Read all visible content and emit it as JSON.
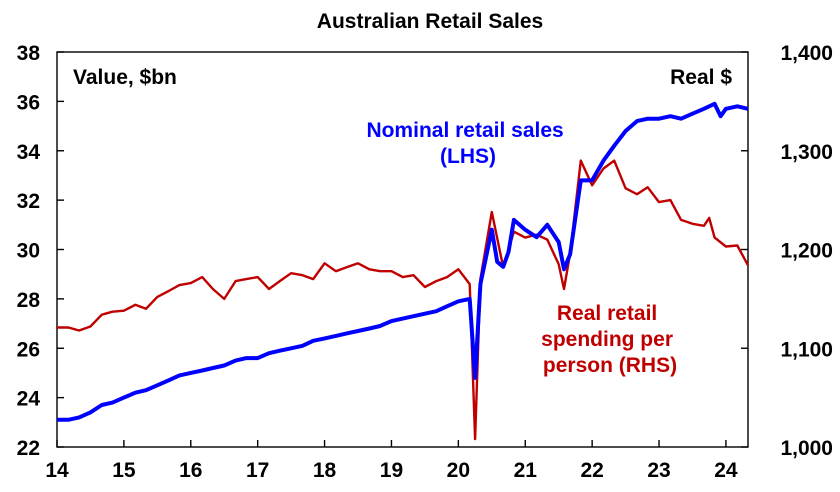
{
  "chart_data": {
    "type": "line",
    "title": "Australian Retail Sales",
    "left_axis_unit": "Value, $bn",
    "right_axis_unit": "Real $",
    "xlim": [
      14,
      24.33
    ],
    "ylim_left": [
      22,
      38
    ],
    "ylim_right": [
      1000,
      1400
    ],
    "x_ticks": [
      "14",
      "15",
      "16",
      "17",
      "18",
      "19",
      "20",
      "21",
      "22",
      "23",
      "24"
    ],
    "y_ticks_left": [
      "22",
      "24",
      "26",
      "28",
      "30",
      "32",
      "34",
      "36",
      "38"
    ],
    "y_ticks_right": [
      "1,000",
      "1,100",
      "1,200",
      "1,300",
      "1,400"
    ],
    "grid": false,
    "legend": "inline annotations",
    "colors": {
      "nominal": "#0000ff",
      "real": "#c00000"
    },
    "series": [
      {
        "name": "Nominal retail sales (LHS)",
        "axis": "left",
        "label_lines": [
          "Nominal retail sales",
          "(LHS)"
        ],
        "points": [
          [
            14.0,
            23.1
          ],
          [
            14.17,
            23.1
          ],
          [
            14.33,
            23.2
          ],
          [
            14.5,
            23.4
          ],
          [
            14.67,
            23.7
          ],
          [
            14.83,
            23.8
          ],
          [
            15.0,
            24.0
          ],
          [
            15.17,
            24.2
          ],
          [
            15.33,
            24.3
          ],
          [
            15.5,
            24.5
          ],
          [
            15.67,
            24.7
          ],
          [
            15.83,
            24.9
          ],
          [
            16.0,
            25.0
          ],
          [
            16.17,
            25.1
          ],
          [
            16.33,
            25.2
          ],
          [
            16.5,
            25.3
          ],
          [
            16.67,
            25.5
          ],
          [
            16.83,
            25.6
          ],
          [
            17.0,
            25.6
          ],
          [
            17.17,
            25.8
          ],
          [
            17.33,
            25.9
          ],
          [
            17.5,
            26.0
          ],
          [
            17.67,
            26.1
          ],
          [
            17.83,
            26.3
          ],
          [
            18.0,
            26.4
          ],
          [
            18.17,
            26.5
          ],
          [
            18.33,
            26.6
          ],
          [
            18.5,
            26.7
          ],
          [
            18.67,
            26.8
          ],
          [
            18.83,
            26.9
          ],
          [
            19.0,
            27.1
          ],
          [
            19.17,
            27.2
          ],
          [
            19.33,
            27.3
          ],
          [
            19.5,
            27.4
          ],
          [
            19.67,
            27.5
          ],
          [
            19.83,
            27.7
          ],
          [
            20.0,
            27.9
          ],
          [
            20.17,
            28.0
          ],
          [
            20.25,
            24.8
          ],
          [
            20.33,
            28.6
          ],
          [
            20.5,
            30.8
          ],
          [
            20.58,
            29.5
          ],
          [
            20.67,
            29.3
          ],
          [
            20.75,
            29.9
          ],
          [
            20.83,
            31.2
          ],
          [
            21.0,
            30.8
          ],
          [
            21.17,
            30.5
          ],
          [
            21.33,
            31.0
          ],
          [
            21.5,
            30.3
          ],
          [
            21.58,
            29.2
          ],
          [
            21.67,
            29.8
          ],
          [
            21.83,
            32.8
          ],
          [
            22.0,
            32.8
          ],
          [
            22.17,
            33.6
          ],
          [
            22.33,
            34.2
          ],
          [
            22.5,
            34.8
          ],
          [
            22.67,
            35.2
          ],
          [
            22.83,
            35.3
          ],
          [
            23.0,
            35.3
          ],
          [
            23.17,
            35.4
          ],
          [
            23.33,
            35.3
          ],
          [
            23.5,
            35.5
          ],
          [
            23.67,
            35.7
          ],
          [
            23.83,
            35.9
          ],
          [
            23.92,
            35.4
          ],
          [
            24.0,
            35.7
          ],
          [
            24.17,
            35.8
          ],
          [
            24.33,
            35.7
          ]
        ]
      },
      {
        "name": "Real retail spending per person (RHS)",
        "axis": "right",
        "label_lines": [
          "Real retail",
          "spending per",
          "person (RHS)"
        ],
        "points": [
          [
            14.0,
            1121
          ],
          [
            14.17,
            1121
          ],
          [
            14.33,
            1118
          ],
          [
            14.5,
            1122
          ],
          [
            14.67,
            1134
          ],
          [
            14.83,
            1137
          ],
          [
            15.0,
            1138
          ],
          [
            15.17,
            1144
          ],
          [
            15.33,
            1140
          ],
          [
            15.5,
            1152
          ],
          [
            15.67,
            1158
          ],
          [
            15.83,
            1164
          ],
          [
            16.0,
            1166
          ],
          [
            16.17,
            1172
          ],
          [
            16.33,
            1160
          ],
          [
            16.5,
            1150
          ],
          [
            16.67,
            1168
          ],
          [
            16.83,
            1170
          ],
          [
            17.0,
            1172
          ],
          [
            17.17,
            1160
          ],
          [
            17.33,
            1168
          ],
          [
            17.5,
            1176
          ],
          [
            17.67,
            1174
          ],
          [
            17.83,
            1170
          ],
          [
            18.0,
            1186
          ],
          [
            18.17,
            1178
          ],
          [
            18.33,
            1182
          ],
          [
            18.5,
            1186
          ],
          [
            18.67,
            1180
          ],
          [
            18.83,
            1178
          ],
          [
            19.0,
            1178
          ],
          [
            19.17,
            1172
          ],
          [
            19.33,
            1174
          ],
          [
            19.5,
            1162
          ],
          [
            19.67,
            1168
          ],
          [
            19.83,
            1172
          ],
          [
            20.0,
            1180
          ],
          [
            20.17,
            1165
          ],
          [
            20.25,
            1008
          ],
          [
            20.33,
            1170
          ],
          [
            20.5,
            1238
          ],
          [
            20.67,
            1182
          ],
          [
            20.83,
            1218
          ],
          [
            21.0,
            1212
          ],
          [
            21.17,
            1215
          ],
          [
            21.33,
            1210
          ],
          [
            21.5,
            1185
          ],
          [
            21.58,
            1160
          ],
          [
            21.67,
            1196
          ],
          [
            21.83,
            1290
          ],
          [
            22.0,
            1265
          ],
          [
            22.17,
            1282
          ],
          [
            22.33,
            1290
          ],
          [
            22.5,
            1262
          ],
          [
            22.67,
            1256
          ],
          [
            22.83,
            1263
          ],
          [
            23.0,
            1248
          ],
          [
            23.17,
            1250
          ],
          [
            23.33,
            1230
          ],
          [
            23.5,
            1226
          ],
          [
            23.67,
            1224
          ],
          [
            23.75,
            1232
          ],
          [
            23.83,
            1212
          ],
          [
            24.0,
            1203
          ],
          [
            24.17,
            1204
          ],
          [
            24.33,
            1184
          ]
        ]
      }
    ]
  }
}
